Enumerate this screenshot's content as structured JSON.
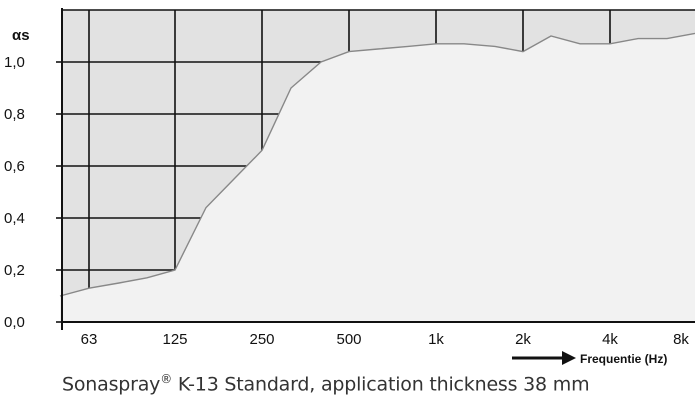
{
  "chart_data": {
    "type": "area",
    "ylabel": "αs",
    "xlabel": "Frequentie (Hz)",
    "x_ticks": [
      "63",
      "125",
      "250",
      "500",
      "1k",
      "2k",
      "4k",
      "8k"
    ],
    "y_ticks": [
      "0,0",
      "0,2",
      "0,4",
      "0,6",
      "0,8",
      "1,0"
    ],
    "ylim": [
      0,
      1.2
    ],
    "grid": true,
    "series": [
      {
        "x": [
          "50",
          "63",
          "80",
          "100",
          "125",
          "160",
          "200",
          "250",
          "315",
          "400",
          "500",
          "630",
          "800",
          "1k",
          "1.25k",
          "1.6k",
          "2k",
          "2.5k",
          "3.15k",
          "4k",
          "5k",
          "6.3k",
          "8k"
        ],
        "values": [
          0.1,
          0.13,
          0.15,
          0.17,
          0.2,
          0.44,
          0.55,
          0.66,
          0.9,
          1.0,
          1.04,
          1.05,
          1.06,
          1.07,
          1.07,
          1.06,
          1.04,
          1.1,
          1.07,
          1.07,
          1.09,
          1.09,
          1.11
        ]
      }
    ],
    "colors": {
      "above": "#e2e2e2",
      "below": "#f2f2f2",
      "line": "#888888"
    }
  },
  "caption": {
    "product": "Sonaspray",
    "mark": "®",
    "rest": " K-13 Standard, application thickness 38 mm"
  }
}
